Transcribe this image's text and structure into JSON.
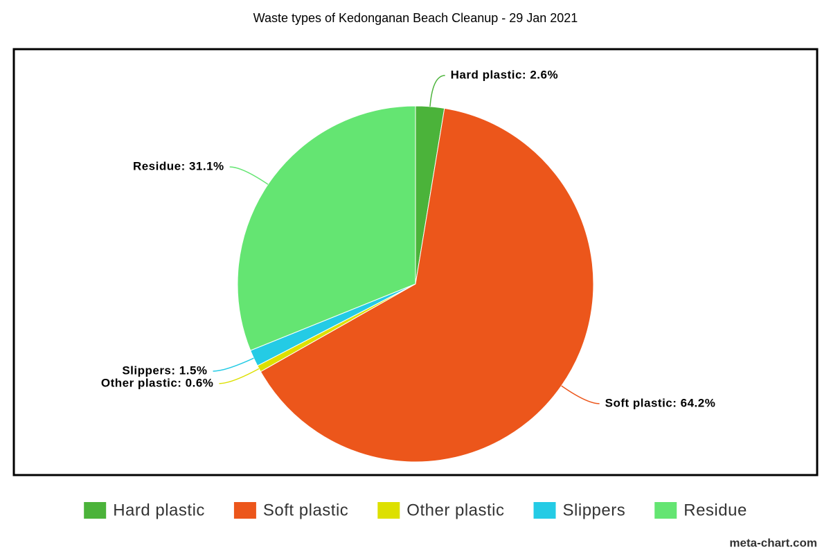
{
  "chart_data": {
    "type": "pie",
    "title": "Waste types of Kedonganan Beach Cleanup - 29 Jan 2021",
    "categories": [
      "Hard plastic",
      "Soft plastic",
      "Other plastic",
      "Slippers",
      "Residue"
    ],
    "values": [
      2.6,
      64.2,
      0.6,
      1.5,
      31.1
    ],
    "value_labels": [
      "Hard plastic: 2.6%",
      "Soft plastic: 64.2%",
      "Other plastic: 0.6%",
      "Slippers: 1.5%",
      "Residue: 31.1%"
    ],
    "colors": [
      "#4bb33a",
      "#ec561b",
      "#dde000",
      "#24cbe5",
      "#64e572"
    ],
    "legend": "bottom",
    "watermark": "meta-chart.com"
  }
}
